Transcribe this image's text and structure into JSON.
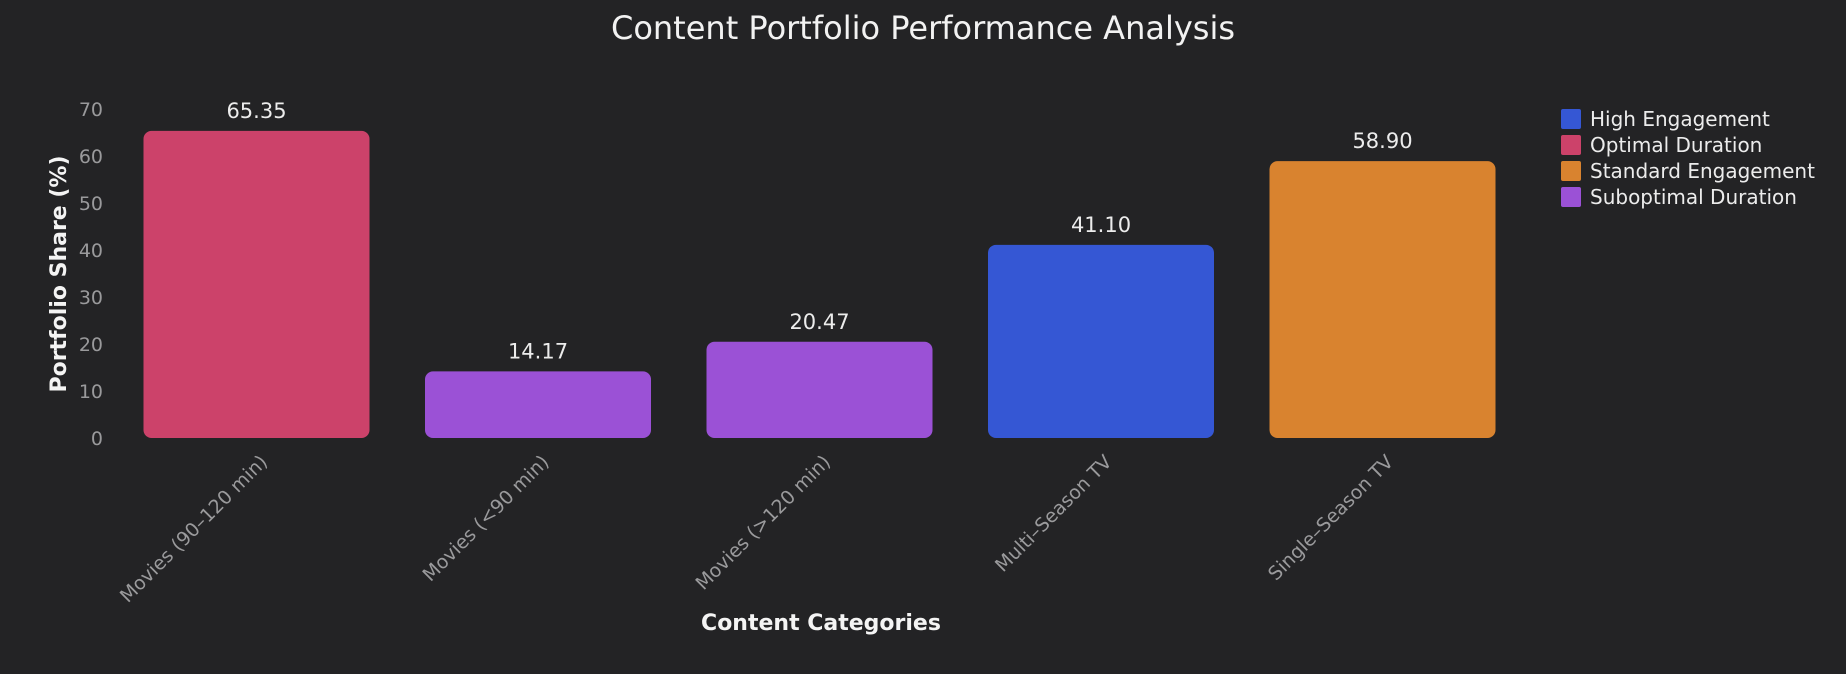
{
  "chart_data": {
    "type": "bar",
    "title": "Content Portfolio Performance Analysis",
    "xlabel": "Content Categories",
    "ylabel": "Portfolio Share (%)",
    "categories": [
      "Movies (90–120 min)",
      "Movies (<90 min)",
      "Movies (>120 min)",
      "Multi–Season TV",
      "Single–Season TV"
    ],
    "values": [
      65.35,
      14.17,
      20.47,
      41.1,
      58.9
    ],
    "value_labels": [
      "65.35",
      "14.17",
      "20.47",
      "41.10",
      "58.90"
    ],
    "bar_groups": [
      "Optimal Duration",
      "Suboptimal Duration",
      "Suboptimal Duration",
      "High Engagement",
      "Standard Engagement"
    ],
    "ylim": [
      0,
      70
    ],
    "yticks": [
      0,
      10,
      20,
      30,
      40,
      50,
      60,
      70
    ],
    "grid": false,
    "legend": {
      "placement": "top-right",
      "entries": [
        {
          "label": "High Engagement",
          "color": "#3557d4"
        },
        {
          "label": "Optimal Duration",
          "color": "#cc426a"
        },
        {
          "label": "Standard Engagement",
          "color": "#d9832f"
        },
        {
          "label": "Suboptimal Duration",
          "color": "#9b51d6"
        }
      ]
    }
  }
}
